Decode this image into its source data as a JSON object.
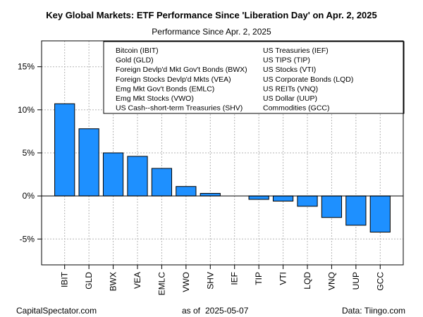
{
  "chart_data": {
    "type": "bar",
    "title": "Key Global Markets: ETF Performance Since 'Liberation Day' on Apr. 2, 2025",
    "subtitle": "Performance Since Apr. 2, 2025",
    "xlabel": "",
    "ylabel": "",
    "ylim": [
      -8,
      18
    ],
    "y_ticks": [
      -5,
      0,
      5,
      10,
      15
    ],
    "y_tick_labels": [
      "-5%",
      "0%",
      "5%",
      "10%",
      "15%"
    ],
    "grid": true,
    "bar_color": "#1E90FF",
    "categories": [
      "IBIT",
      "GLD",
      "BWX",
      "VEA",
      "EMLC",
      "VWO",
      "SHV",
      "IEF",
      "TIP",
      "VTI",
      "LQD",
      "VNQ",
      "UUP",
      "GCC"
    ],
    "values": [
      10.7,
      7.8,
      5.0,
      4.6,
      3.2,
      1.1,
      0.3,
      0.0,
      -0.4,
      -0.6,
      -1.2,
      -2.5,
      -3.4,
      -4.2
    ],
    "legend": {
      "placement": "top-right",
      "left_column": [
        "Bitcoin (IBIT)",
        "Gold (GLD)",
        "Foreign Devlp'd Mkt Gov't Bonds (BWX)",
        "Foreign Stocks Devlp'd Mkts (VEA)",
        "Emg Mkt Gov't Bonds (EMLC)",
        "Emg Mkt Stocks (VWO)",
        "US Cash--short-term Treasuries (SHV)"
      ],
      "right_column": [
        "US Treasuries (IEF)",
        "US TIPS (TIP)",
        "US Stocks (VTI)",
        "US Corporate Bonds (LQD)",
        "US REITs (VNQ)",
        "US Dollar (UUP)",
        "Commodities (GCC)"
      ]
    }
  },
  "footer": {
    "left": "CapitalSpectator.com",
    "as_of_label": "as of",
    "as_of_date": "2025-05-07",
    "right": "Data: Tiingo.com"
  }
}
